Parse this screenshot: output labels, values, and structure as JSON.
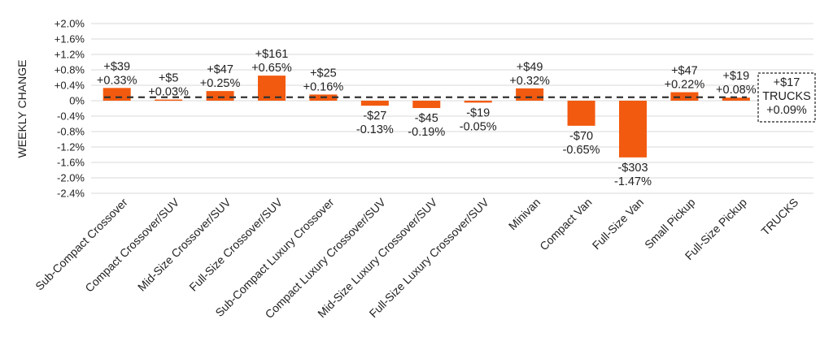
{
  "chart_data": {
    "type": "bar",
    "ylabel": "WEEKLY CHANGE",
    "ylim": [
      -2.4,
      2.0
    ],
    "yticks": [
      "+2.0%",
      "+1.6%",
      "+1.2%",
      "+0.8%",
      "+0.4%",
      "0%",
      "-0.4%",
      "-0.8%",
      "-1.2%",
      "-1.6%",
      "-2.0%",
      "-2.4%"
    ],
    "categories": [
      "Sub-Compact Crossover",
      "Compact Crossover/SUV",
      "Mid-Size Crossover/SUV",
      "Full-Size Crossover/SUV",
      "Sub-Compact Luxury Crossover",
      "Compact Luxury Crossover/SUV",
      "Mid-Size Luxury Crossover/SUV",
      "Full-Size Luxury Crossover/SUV",
      "Minivan",
      "Compact Van",
      "Full-Size Van",
      "Small Pickup",
      "Full-Size Pickup",
      "TRUCKS"
    ],
    "values": [
      0.33,
      0.03,
      0.25,
      0.65,
      0.16,
      -0.13,
      -0.19,
      -0.05,
      0.32,
      -0.65,
      -1.47,
      0.22,
      0.08,
      null
    ],
    "dollar_labels": [
      "+$39",
      "+$5",
      "+$47",
      "+$161",
      "+$25",
      "-$27",
      "-$45",
      "-$19",
      "+$49",
      "-$70",
      "-$303",
      "+$47",
      "+$19",
      "+$17"
    ],
    "pct_labels": [
      "+0.33%",
      "+0.03%",
      "+0.25%",
      "+0.65%",
      "+0.16%",
      "-0.13%",
      "-0.19%",
      "-0.05%",
      "+0.32%",
      "-0.65%",
      "-1.47%",
      "+0.22%",
      "+0.08%",
      "+0.09%"
    ],
    "reference": {
      "value": 0.09,
      "style": "dashed",
      "label_dollar": "+$17",
      "label_name": "TRUCKS",
      "label_pct": "+0.09%"
    },
    "grid": true,
    "colors": {
      "bar": "#f25a0f",
      "grid": "#d9d9d9",
      "reference": "#333333"
    }
  }
}
